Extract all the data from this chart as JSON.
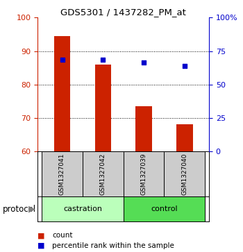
{
  "title": "GDS5301 / 1437282_PM_at",
  "samples": [
    "GSM1327041",
    "GSM1327042",
    "GSM1327039",
    "GSM1327040"
  ],
  "bar_values": [
    94.5,
    86.0,
    73.5,
    68.0
  ],
  "blue_values": [
    87.5,
    87.5,
    86.5,
    85.5
  ],
  "ylim_left": [
    60,
    100
  ],
  "ylim_right": [
    0,
    100
  ],
  "yticks_left": [
    60,
    70,
    80,
    90,
    100
  ],
  "ytick_labels_right": [
    "0",
    "25",
    "50",
    "75",
    "100%"
  ],
  "bar_color": "#cc2200",
  "blue_color": "#0000cc",
  "groups": [
    {
      "label": "castration",
      "samples": [
        0,
        1
      ],
      "color": "#bbffbb"
    },
    {
      "label": "control",
      "samples": [
        2,
        3
      ],
      "color": "#55dd55"
    }
  ],
  "sample_box_color": "#cccccc",
  "legend_count_label": "count",
  "legend_pct_label": "percentile rank within the sample",
  "protocol_label": "protocol",
  "background_color": "#ffffff",
  "left_axis_color": "#cc2200",
  "right_axis_color": "#0000cc"
}
